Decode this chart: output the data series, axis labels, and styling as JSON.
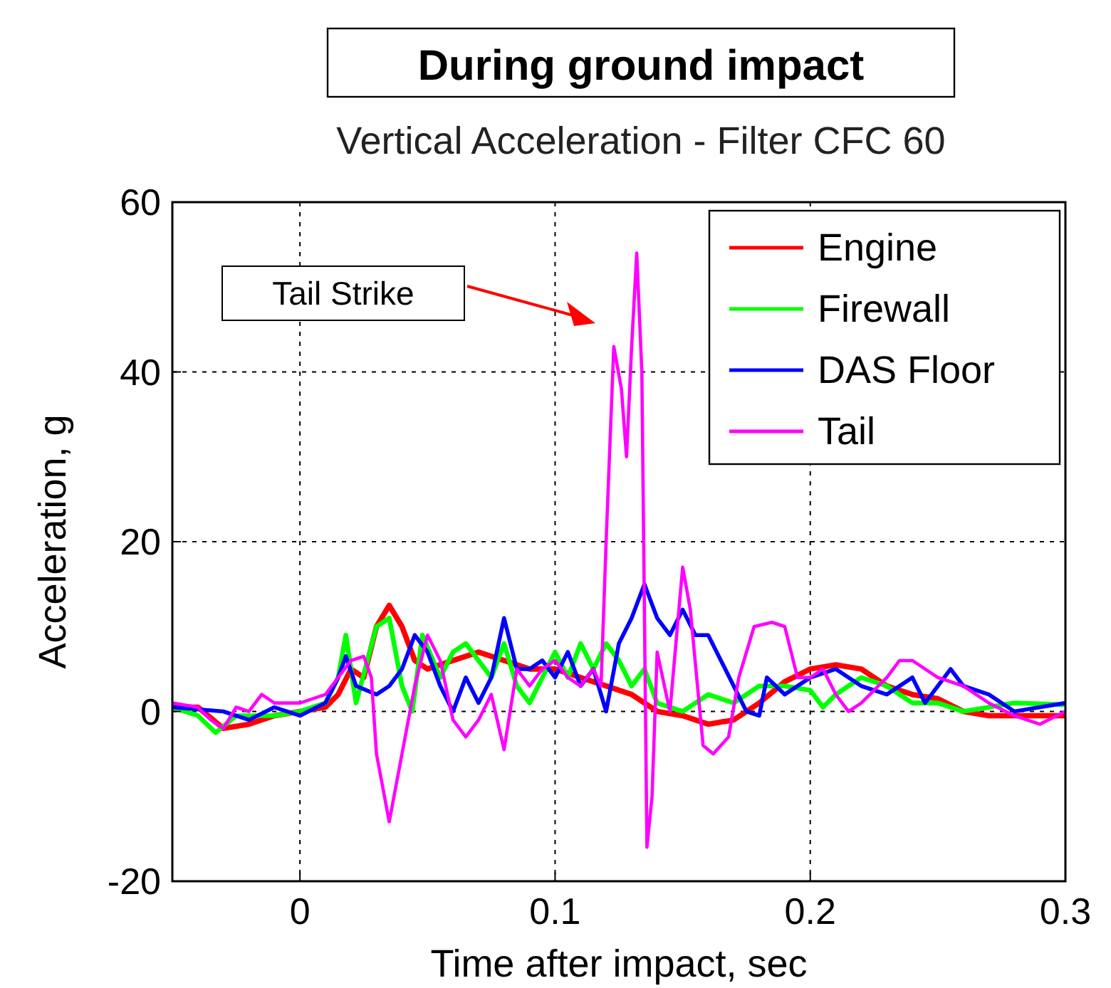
{
  "chart_data": {
    "type": "line",
    "title": "During ground impact",
    "subtitle": "Vertical Acceleration - Filter CFC 60",
    "xlabel": "Time after impact, sec",
    "ylabel": "Acceleration, g",
    "xlim": [
      -0.05,
      0.3
    ],
    "xticks": [
      0,
      0.1,
      0.2,
      0.3
    ],
    "ylim": [
      -20,
      60
    ],
    "yticks": [
      -20,
      0,
      20,
      40,
      60
    ],
    "grid": true,
    "legend": "top right",
    "marker": "none",
    "line_style": "solid",
    "annotations": [
      "Tail Strike"
    ],
    "series": [
      {
        "name": "Engine",
        "color": "#ff0000",
        "x": [
          -0.05,
          -0.04,
          -0.03,
          -0.02,
          -0.01,
          0,
          0.01,
          0.015,
          0.02,
          0.025,
          0.03,
          0.035,
          0.04,
          0.045,
          0.05,
          0.06,
          0.07,
          0.08,
          0.09,
          0.1,
          0.11,
          0.12,
          0.13,
          0.14,
          0.15,
          0.16,
          0.17,
          0.18,
          0.19,
          0.2,
          0.21,
          0.22,
          0.23,
          0.24,
          0.25,
          0.26,
          0.27,
          0.28,
          0.3
        ],
        "values": [
          0.5,
          0.5,
          -2,
          -1.5,
          -0.5,
          0,
          0.5,
          2,
          5,
          4,
          10,
          12.5,
          10,
          6,
          5,
          6,
          7,
          6,
          5,
          5,
          4,
          3,
          2,
          0,
          -0.5,
          -1.5,
          -1,
          1,
          3.5,
          5,
          5.5,
          5,
          3,
          2,
          1.5,
          0,
          -0.5,
          -0.5,
          -0.5
        ]
      },
      {
        "name": "Firewall",
        "color": "#00ff00",
        "x": [
          -0.05,
          -0.04,
          -0.033,
          -0.025,
          -0.02,
          -0.01,
          0,
          0.01,
          0.015,
          0.018,
          0.022,
          0.03,
          0.035,
          0.04,
          0.044,
          0.048,
          0.055,
          0.06,
          0.065,
          0.07,
          0.075,
          0.08,
          0.085,
          0.09,
          0.095,
          0.1,
          0.105,
          0.11,
          0.115,
          0.12,
          0.125,
          0.13,
          0.135,
          0.14,
          0.15,
          0.16,
          0.17,
          0.18,
          0.19,
          0.2,
          0.205,
          0.21,
          0.22,
          0.23,
          0.24,
          0.25,
          0.26,
          0.27,
          0.28,
          0.3
        ],
        "values": [
          0.5,
          -0.5,
          -2.5,
          -0.5,
          -0.5,
          -0.5,
          0,
          1,
          4,
          9,
          1,
          10,
          11,
          3,
          0,
          9,
          4,
          7,
          8,
          6,
          4,
          8,
          3,
          1,
          4,
          7,
          4,
          8,
          5,
          8,
          6,
          3,
          5,
          1,
          0,
          2,
          1,
          3,
          3,
          2.5,
          0.5,
          2,
          4,
          3,
          1,
          1,
          0,
          0.5,
          1,
          0.8
        ]
      },
      {
        "name": "DAS Floor",
        "color": "#0000ff",
        "x": [
          -0.05,
          -0.03,
          -0.02,
          -0.01,
          0,
          0.01,
          0.015,
          0.018,
          0.022,
          0.03,
          0.035,
          0.04,
          0.045,
          0.05,
          0.055,
          0.06,
          0.065,
          0.07,
          0.075,
          0.08,
          0.085,
          0.09,
          0.095,
          0.1,
          0.105,
          0.11,
          0.115,
          0.12,
          0.125,
          0.13,
          0.135,
          0.14,
          0.145,
          0.15,
          0.155,
          0.16,
          0.165,
          0.17,
          0.175,
          0.18,
          0.183,
          0.19,
          0.2,
          0.21,
          0.22,
          0.23,
          0.24,
          0.245,
          0.25,
          0.255,
          0.26,
          0.27,
          0.28,
          0.29,
          0.3
        ],
        "values": [
          0.5,
          0,
          -1,
          0.5,
          -0.5,
          1,
          4,
          6.5,
          3,
          2,
          3,
          5,
          9,
          7,
          3,
          0,
          4,
          1,
          4,
          11,
          5,
          5,
          6,
          4,
          7,
          3,
          5,
          0,
          8,
          11,
          15,
          11,
          9,
          12,
          9,
          9,
          6,
          3,
          0,
          -0.5,
          4,
          2,
          4,
          5,
          3,
          2,
          4,
          1,
          3,
          5,
          3,
          2,
          0,
          0.5,
          1
        ]
      },
      {
        "name": "Tail",
        "color": "#ff00ff",
        "x": [
          -0.05,
          -0.04,
          -0.035,
          -0.03,
          -0.025,
          -0.02,
          -0.015,
          -0.01,
          0,
          0.01,
          0.015,
          0.02,
          0.025,
          0.028,
          0.03,
          0.035,
          0.04,
          0.045,
          0.05,
          0.055,
          0.06,
          0.065,
          0.07,
          0.075,
          0.08,
          0.085,
          0.09,
          0.095,
          0.1,
          0.105,
          0.11,
          0.115,
          0.118,
          0.12,
          0.123,
          0.126,
          0.128,
          0.13,
          0.132,
          0.134,
          0.136,
          0.138,
          0.14,
          0.145,
          0.15,
          0.153,
          0.158,
          0.162,
          0.168,
          0.172,
          0.178,
          0.185,
          0.19,
          0.195,
          0.2,
          0.205,
          0.21,
          0.215,
          0.22,
          0.23,
          0.235,
          0.24,
          0.25,
          0.26,
          0.27,
          0.28,
          0.29,
          0.3
        ],
        "values": [
          1,
          0.5,
          -1,
          -2,
          0.5,
          0,
          2,
          1,
          1,
          2,
          4,
          6,
          6.5,
          4,
          -5,
          -13,
          -5,
          3,
          9,
          6,
          -1,
          -3,
          -1,
          2,
          -4.5,
          5,
          3,
          5,
          6,
          4,
          3,
          5,
          3,
          20,
          43,
          38,
          30,
          43,
          54,
          40,
          -16,
          -10,
          7,
          0,
          17,
          12,
          -4,
          -5,
          -3,
          4,
          10,
          10.5,
          10,
          4,
          4,
          5,
          2,
          0,
          1,
          4,
          6,
          6,
          4,
          3,
          1,
          -0.5,
          -1.5,
          0
        ]
      }
    ]
  }
}
